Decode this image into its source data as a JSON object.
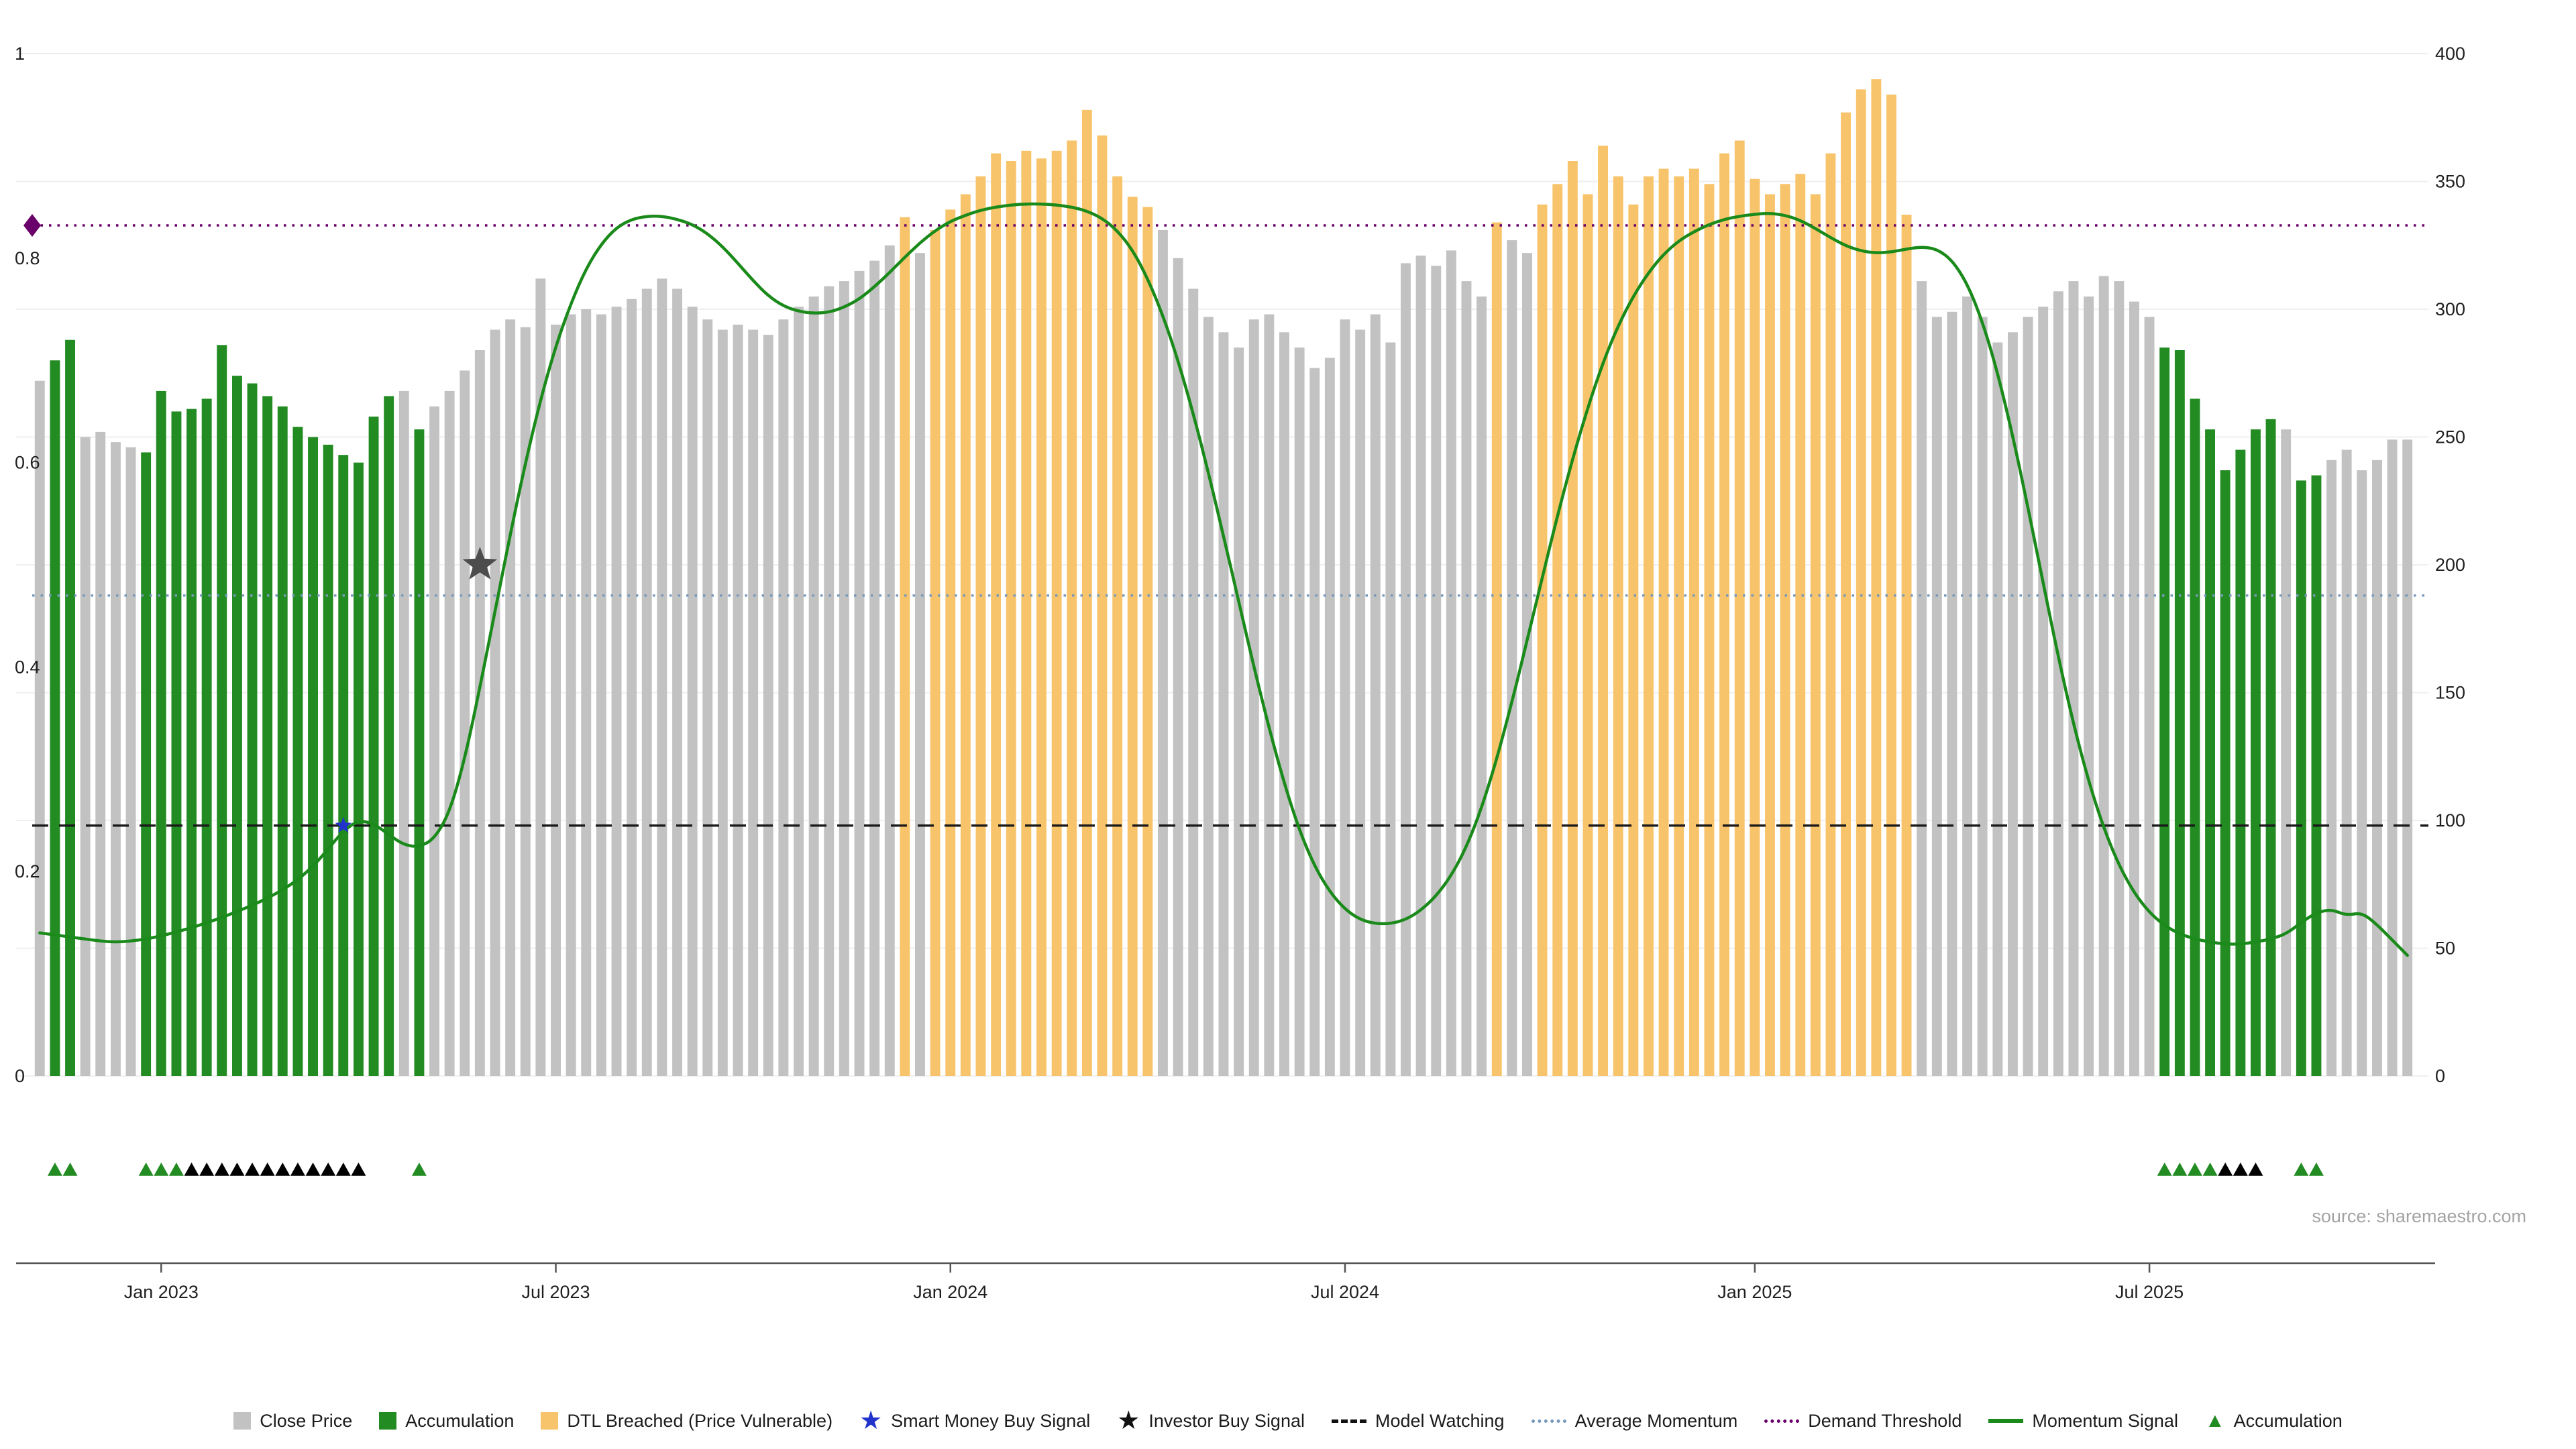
{
  "page": {
    "source_text": "source: sharemaestro.com"
  },
  "chart_data": {
    "type": "bar",
    "overlays": [
      "line"
    ],
    "title": "",
    "xlabel": "",
    "ylabel_left": "",
    "ylabel_right": "",
    "ylim_left": [
      0,
      1
    ],
    "ylim_right": [
      0,
      400
    ],
    "grid": true,
    "colors": {
      "close": "#c2c2c2",
      "accumulation": "#228b22",
      "dtl_breached": "#f8c46b",
      "momentum_line": "#1a8a1a",
      "smart_money": "#2233cc",
      "investor": "#4d4d4d",
      "grid": "#efefef",
      "axis": "#555555",
      "black_marker": "#000000"
    },
    "bars": {
      "name": "Close Price (weekly)",
      "state_legend": {
        "0": "close",
        "1": "accumulation",
        "2": "dtl_breached"
      },
      "values": [
        272,
        280,
        288,
        250,
        252,
        248,
        246,
        244,
        268,
        260,
        261,
        265,
        286,
        274,
        271,
        266,
        262,
        254,
        250,
        247,
        243,
        240,
        258,
        266,
        268,
        253,
        262,
        268,
        276,
        284,
        292,
        296,
        293,
        312,
        294,
        298,
        300,
        298,
        301,
        304,
        308,
        312,
        308,
        301,
        296,
        292,
        294,
        292,
        290,
        296,
        301,
        305,
        309,
        311,
        315,
        319,
        325,
        336,
        322,
        331,
        339,
        345,
        352,
        361,
        358,
        362,
        359,
        362,
        366,
        378,
        368,
        352,
        344,
        340,
        331,
        320,
        308,
        297,
        291,
        285,
        296,
        298,
        291,
        285,
        277,
        281,
        296,
        292,
        298,
        287,
        318,
        321,
        317,
        323,
        311,
        305,
        334,
        327,
        322,
        341,
        349,
        358,
        345,
        364,
        352,
        341,
        352,
        355,
        352,
        355,
        349,
        361,
        366,
        351,
        345,
        349,
        353,
        345,
        361,
        377,
        386,
        390,
        384,
        337,
        311,
        297,
        299,
        305,
        297,
        287,
        291,
        297,
        301,
        307,
        311,
        305,
        313,
        311,
        303,
        297,
        285,
        284,
        265,
        253,
        237,
        245,
        253,
        257,
        253,
        233,
        235,
        241,
        245,
        237,
        241,
        249,
        249
      ],
      "states": [
        0,
        1,
        1,
        0,
        0,
        0,
        0,
        1,
        1,
        1,
        1,
        1,
        1,
        1,
        1,
        1,
        1,
        1,
        1,
        1,
        1,
        1,
        1,
        1,
        0,
        1,
        0,
        0,
        0,
        0,
        0,
        0,
        0,
        0,
        0,
        0,
        0,
        0,
        0,
        0,
        0,
        0,
        0,
        0,
        0,
        0,
        0,
        0,
        0,
        0,
        0,
        0,
        0,
        0,
        0,
        0,
        0,
        2,
        0,
        2,
        2,
        2,
        2,
        2,
        2,
        2,
        2,
        2,
        2,
        2,
        2,
        2,
        2,
        2,
        0,
        0,
        0,
        0,
        0,
        0,
        0,
        0,
        0,
        0,
        0,
        0,
        0,
        0,
        0,
        0,
        0,
        0,
        0,
        0,
        0,
        0,
        2,
        0,
        0,
        2,
        2,
        2,
        2,
        2,
        2,
        2,
        2,
        2,
        2,
        2,
        2,
        2,
        2,
        2,
        2,
        2,
        2,
        2,
        2,
        2,
        2,
        2,
        2,
        2,
        0,
        0,
        0,
        0,
        0,
        0,
        0,
        0,
        0,
        0,
        0,
        0,
        0,
        0,
        0,
        0,
        1,
        1,
        1,
        1,
        1,
        1,
        1,
        1,
        0,
        1,
        1,
        0,
        0,
        0,
        0,
        0,
        0
      ]
    },
    "line": {
      "name": "Momentum Signal",
      "values": [
        0.14,
        0.138,
        0.136,
        0.134,
        0.132,
        0.131,
        0.132,
        0.134,
        0.137,
        0.141,
        0.145,
        0.15,
        0.155,
        0.161,
        0.167,
        0.174,
        0.182,
        0.192,
        0.205,
        0.222,
        0.24,
        0.25,
        0.247,
        0.236,
        0.226,
        0.224,
        0.232,
        0.258,
        0.31,
        0.38,
        0.455,
        0.53,
        0.6,
        0.662,
        0.714,
        0.756,
        0.79,
        0.814,
        0.83,
        0.838,
        0.841,
        0.841,
        0.838,
        0.833,
        0.824,
        0.811,
        0.795,
        0.778,
        0.763,
        0.753,
        0.748,
        0.746,
        0.747,
        0.752,
        0.76,
        0.772,
        0.786,
        0.801,
        0.815,
        0.827,
        0.836,
        0.842,
        0.847,
        0.85,
        0.852,
        0.853,
        0.853,
        0.852,
        0.85,
        0.846,
        0.839,
        0.827,
        0.808,
        0.78,
        0.744,
        0.7,
        0.648,
        0.59,
        0.528,
        0.464,
        0.4,
        0.34,
        0.286,
        0.24,
        0.205,
        0.18,
        0.163,
        0.153,
        0.149,
        0.149,
        0.153,
        0.162,
        0.176,
        0.196,
        0.224,
        0.262,
        0.31,
        0.366,
        0.426,
        0.488,
        0.548,
        0.604,
        0.654,
        0.698,
        0.734,
        0.763,
        0.786,
        0.804,
        0.817,
        0.826,
        0.833,
        0.838,
        0.841,
        0.843,
        0.844,
        0.842,
        0.837,
        0.829,
        0.82,
        0.812,
        0.807,
        0.805,
        0.806,
        0.809,
        0.811,
        0.809,
        0.798,
        0.775,
        0.738,
        0.688,
        0.626,
        0.556,
        0.482,
        0.41,
        0.344,
        0.288,
        0.242,
        0.206,
        0.179,
        0.16,
        0.147,
        0.139,
        0.134,
        0.131,
        0.129,
        0.129,
        0.131,
        0.134,
        0.139,
        0.15,
        0.16,
        0.163,
        0.157,
        0.16,
        0.148,
        0.133,
        0.118
      ]
    },
    "hlines": [
      {
        "name": "Demand Threshold",
        "value": 0.832,
        "style": "dotted",
        "color": "#6a006a"
      },
      {
        "name": "Average Momentum",
        "value": 0.47,
        "style": "dotted",
        "color": "#7799bb"
      },
      {
        "name": "Model Watching",
        "value": 0.245,
        "style": "dashed",
        "color": "#1a1a1a"
      }
    ],
    "markers": {
      "smart_money_buy": {
        "index": 20,
        "y": 0.245
      },
      "investor_buy": {
        "index": 29,
        "y": 0.5
      },
      "demand_diamond": {
        "y": 0.832
      }
    },
    "accumulation_markers": {
      "green": [
        1,
        2,
        7,
        8,
        9,
        25,
        140,
        141,
        142,
        143,
        149,
        150
      ],
      "black": [
        10,
        11,
        12,
        13,
        14,
        15,
        16,
        17,
        18,
        19,
        20,
        21,
        144,
        145,
        146
      ]
    },
    "axes": {
      "left": {
        "ticks": [
          0,
          0.2,
          0.4,
          0.6,
          0.8,
          1
        ],
        "labels": [
          "0",
          "0.2",
          "0.4",
          "0.6",
          "0.8",
          "1"
        ]
      },
      "right": {
        "max": 400,
        "ticks": [
          0,
          50,
          100,
          150,
          200,
          250,
          300,
          350,
          400
        ],
        "labels": [
          "0",
          "50",
          "100",
          "150",
          "200",
          "250",
          "300",
          "350",
          "400"
        ]
      },
      "x": {
        "ticks": [
          {
            "label": "Jan 2023",
            "index": 8
          },
          {
            "label": "Jul 2023",
            "index": 34
          },
          {
            "label": "Jan 2024",
            "index": 60
          },
          {
            "label": "Jul 2024",
            "index": 86
          },
          {
            "label": "Jan 2025",
            "index": 113
          },
          {
            "label": "Jul 2025",
            "index": 139
          }
        ]
      }
    }
  },
  "legend": {
    "items": [
      {
        "label": "Close Price",
        "type": "square",
        "color": "#c2c2c2"
      },
      {
        "label": "Accumulation",
        "type": "square",
        "color": "#228b22"
      },
      {
        "label": "DTL Breached (Price Vulnerable)",
        "type": "square",
        "color": "#f8c46b"
      },
      {
        "label": "Smart Money Buy Signal",
        "type": "star",
        "color": "#2233cc"
      },
      {
        "label": "Investor Buy Signal",
        "type": "star",
        "color": "#111111"
      },
      {
        "label": "Model Watching",
        "type": "dashed-line",
        "color": "#111111"
      },
      {
        "label": "Average Momentum",
        "type": "dotted-line",
        "color": "#7799bb"
      },
      {
        "label": "Demand Threshold",
        "type": "dotted-line",
        "color": "#6a006a"
      },
      {
        "label": "Momentum Signal",
        "type": "solid-line",
        "color": "#1a8a1a"
      },
      {
        "label": "Accumulation",
        "type": "triangle",
        "color": "#228b22"
      }
    ]
  }
}
